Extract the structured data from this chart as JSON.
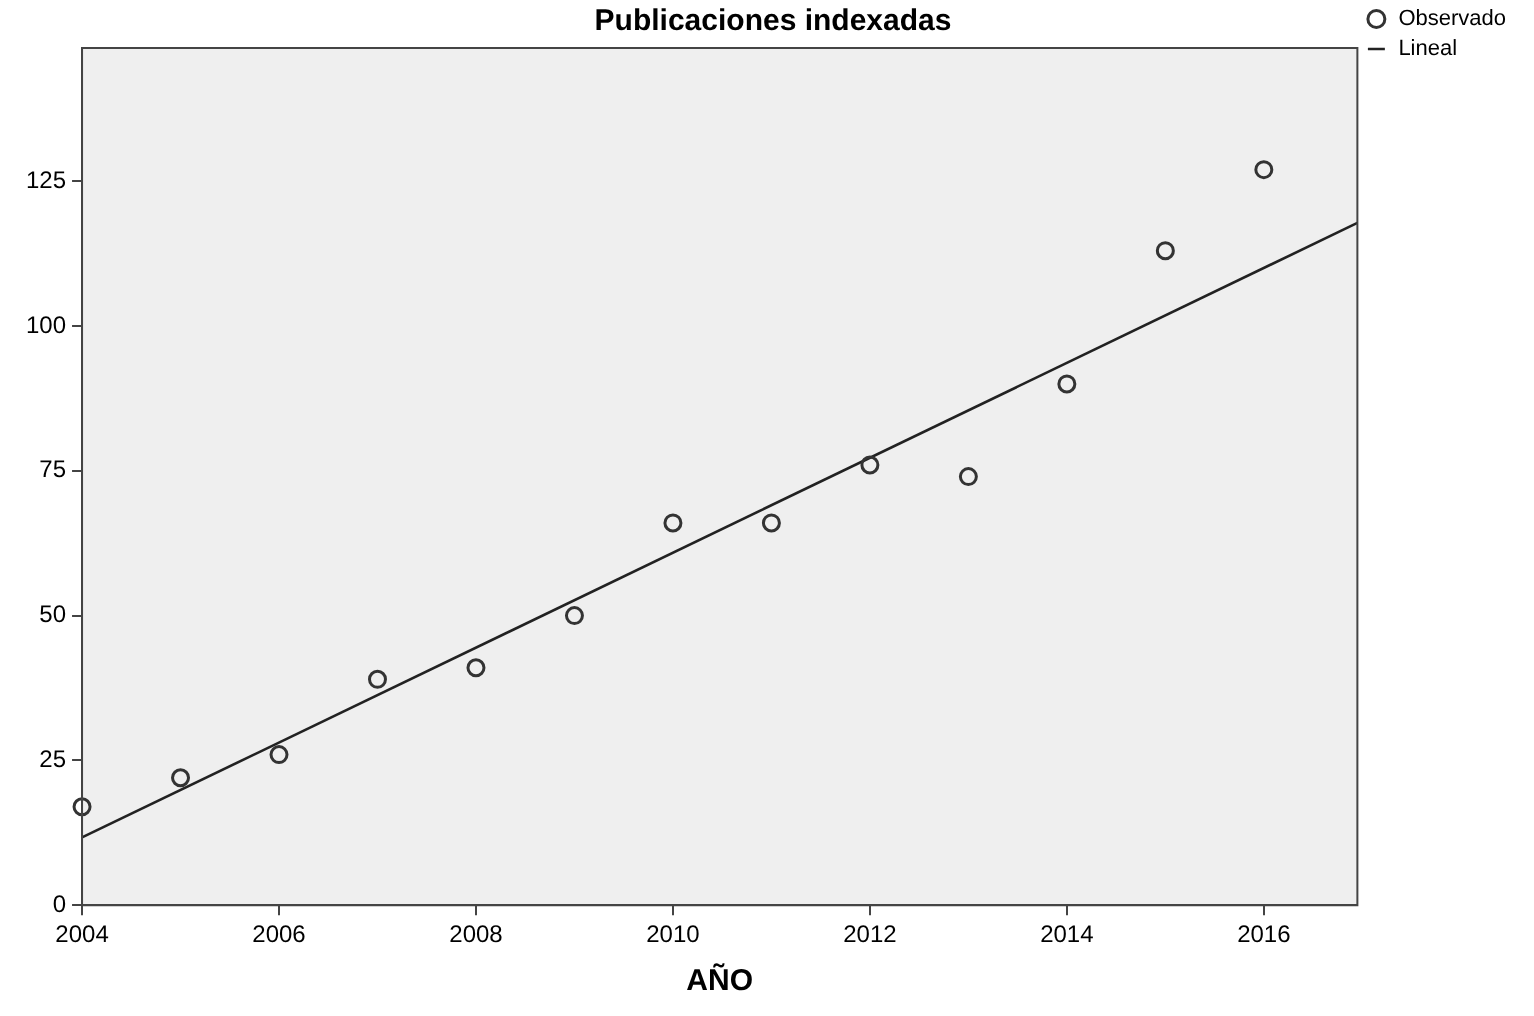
{
  "chart_data": {
    "type": "scatter",
    "title": "Publicaciones indexadas",
    "xlabel": "AÑO",
    "x": [
      2004,
      2005,
      2006,
      2007,
      2008,
      2009,
      2010,
      2011,
      2012,
      2013,
      2014,
      2015,
      2016
    ],
    "series": [
      {
        "name": "Observado",
        "color": "#333333",
        "marker": "circle",
        "values": [
          17,
          22,
          26,
          39,
          41,
          50,
          66,
          66,
          76,
          74,
          90,
          113,
          127
        ]
      },
      {
        "name": "Lineal",
        "type": "line",
        "color": "#222222",
        "marker": "none",
        "line_style": "solid",
        "x": [
          2004,
          2016.95
        ],
        "values": [
          11.7,
          117.8
        ]
      }
    ],
    "xlim": [
      2004,
      2016.95
    ],
    "xticks": [
      2004,
      2006,
      2008,
      2010,
      2012,
      2014,
      2016
    ],
    "ylim": [
      0,
      148
    ],
    "yticks": [
      0,
      25,
      50,
      75,
      100,
      125
    ],
    "grid": false,
    "legend": "top right"
  }
}
